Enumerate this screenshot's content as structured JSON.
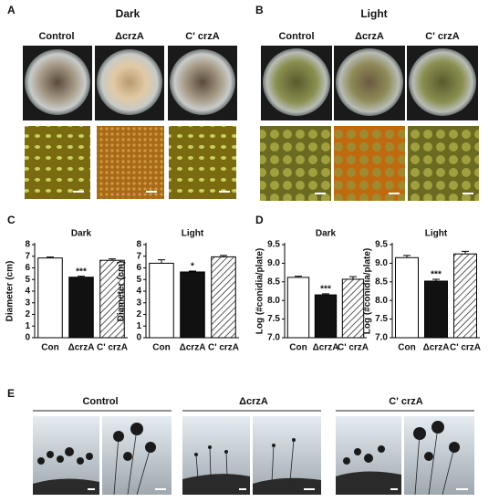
{
  "panels": {
    "a": {
      "label": "A",
      "title": "Dark",
      "columns": [
        "Control",
        "ΔcrzA",
        "C' crzA"
      ]
    },
    "b": {
      "label": "B",
      "title": "Light",
      "columns": [
        "Control",
        "ΔcrzA",
        "C' crzA"
      ]
    },
    "c": {
      "label": "C"
    },
    "d": {
      "label": "D"
    },
    "e": {
      "label": "E",
      "columns": [
        "Control",
        "ΔcrzA",
        "C' crzA"
      ]
    }
  },
  "chart_data": [
    {
      "type": "bar",
      "title": "Dark",
      "y_label": "Diameter (cm)",
      "categories": [
        "Con",
        "ΔcrzA",
        "C' crzA"
      ],
      "values": [
        6.85,
        5.2,
        6.65
      ],
      "errors": [
        0.08,
        0.08,
        0.12
      ],
      "value_annotations": [
        null,
        "***",
        null
      ],
      "colors": [
        "#ffffff",
        "#111111",
        "#ffffff"
      ],
      "patterns": [
        "none",
        "none",
        "diagonal"
      ],
      "ylim": [
        0,
        8
      ],
      "yticks": [
        0,
        1,
        2,
        3,
        4,
        5,
        6,
        7,
        8
      ]
    },
    {
      "type": "bar",
      "title": "Light",
      "y_label": "Diameter (cm)",
      "categories": [
        "Con",
        "ΔcrzA",
        "C' crzA"
      ],
      "values": [
        6.4,
        5.65,
        6.95
      ],
      "errors": [
        0.3,
        0.08,
        0.12
      ],
      "value_annotations": [
        null,
        "*",
        null
      ],
      "colors": [
        "#ffffff",
        "#111111",
        "#ffffff"
      ],
      "patterns": [
        "none",
        "none",
        "diagonal"
      ],
      "ylim": [
        0,
        8
      ],
      "yticks": [
        0,
        1,
        2,
        3,
        4,
        5,
        6,
        7,
        8
      ]
    },
    {
      "type": "bar",
      "title": "Dark",
      "y_label": "Log (#conidia/plate)",
      "categories": [
        "Con",
        "ΔcrzA",
        "C' crzA"
      ],
      "values": [
        8.62,
        8.15,
        8.57
      ],
      "errors": [
        0.03,
        0.03,
        0.07
      ],
      "value_annotations": [
        null,
        "***",
        null
      ],
      "colors": [
        "#ffffff",
        "#111111",
        "#ffffff"
      ],
      "patterns": [
        "none",
        "none",
        "diagonal"
      ],
      "ylim": [
        7,
        9.5
      ],
      "yticks": [
        {
          "value": 7,
          "label": "7.0"
        },
        7.5,
        {
          "value": 8,
          "label": "8.0"
        },
        8.5,
        {
          "value": 9,
          "label": "9.0"
        },
        9.5
      ]
    },
    {
      "type": "bar",
      "title": "Light",
      "y_label": "Log (#conidia/plate)",
      "categories": [
        "Con",
        "ΔcrzA",
        "C' crzA"
      ],
      "values": [
        9.15,
        8.52,
        9.25
      ],
      "errors": [
        0.06,
        0.05,
        0.07
      ],
      "value_annotations": [
        null,
        "***",
        null
      ],
      "colors": [
        "#ffffff",
        "#111111",
        "#ffffff"
      ],
      "patterns": [
        "none",
        "none",
        "diagonal"
      ],
      "ylim": [
        7,
        9.5
      ],
      "yticks": [
        {
          "value": 7,
          "label": "7.0"
        },
        7.5,
        {
          "value": 8,
          "label": "8.0"
        },
        8.5,
        {
          "value": 9,
          "label": "9.0"
        },
        9.5
      ]
    }
  ]
}
